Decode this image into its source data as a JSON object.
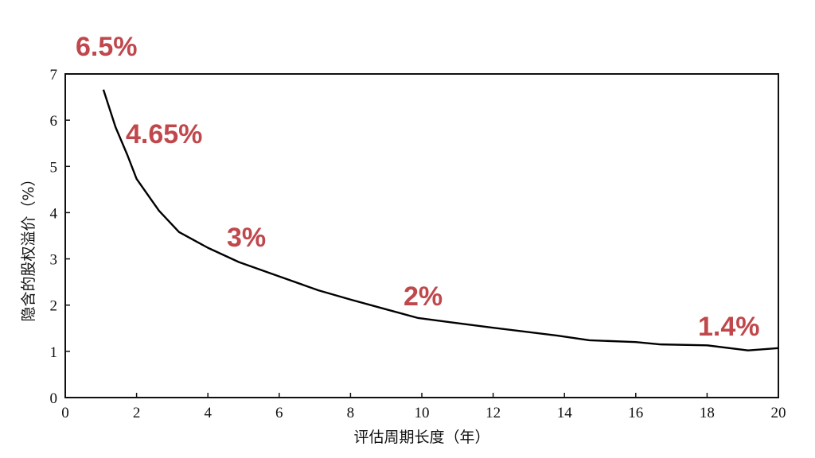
{
  "chart_data": {
    "type": "line",
    "x_label": "评估周期长度（年）",
    "y_label": "隐含的股权溢价（%）",
    "xlim": [
      0,
      20
    ],
    "ylim": [
      0,
      7
    ],
    "xticks": [
      0,
      2,
      4,
      6,
      8,
      10,
      12,
      14,
      16,
      18,
      20
    ],
    "yticks": [
      0,
      1,
      2,
      3,
      4,
      5,
      6,
      7
    ],
    "grid": false,
    "color": "#000000",
    "x": [
      1.07,
      1.41,
      1.74,
      2.0,
      2.63,
      3.19,
      4.0,
      4.87,
      6.0,
      7.1,
      8.0,
      8.9,
      9.9,
      10.7,
      12.0,
      13.8,
      14.7,
      16.0,
      16.7,
      18.0,
      19.15,
      20.0
    ],
    "values": [
      6.66,
      5.85,
      5.25,
      4.73,
      4.04,
      3.58,
      3.24,
      2.93,
      2.62,
      2.32,
      2.12,
      1.93,
      1.72,
      1.64,
      1.51,
      1.34,
      1.24,
      1.2,
      1.15,
      1.13,
      1.02,
      1.07
    ],
    "annotations": [
      "6.5%",
      "4.65%",
      "3%",
      "2%",
      "1.4%"
    ]
  }
}
